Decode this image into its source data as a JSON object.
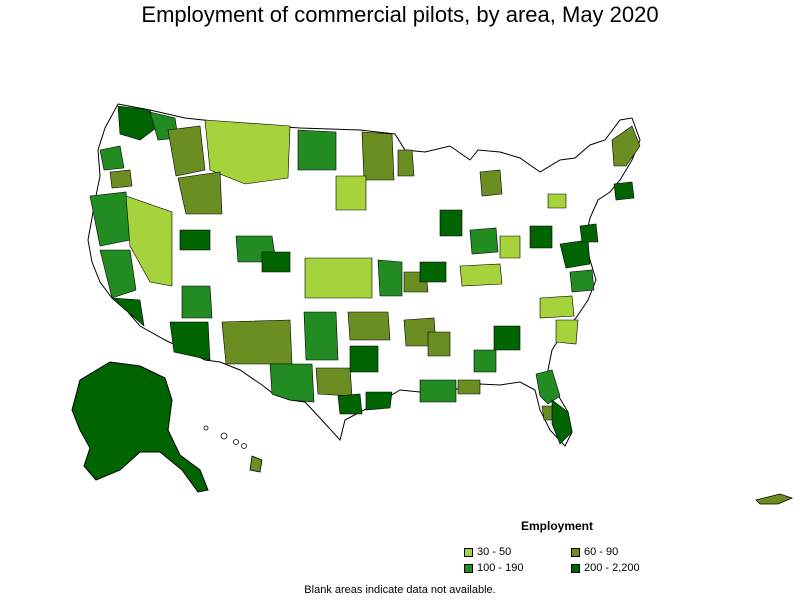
{
  "title": "Employment of commercial pilots, by area, May 2020",
  "legend": {
    "title": "Employment",
    "items": [
      {
        "label": "30 - 50",
        "color": "#a6d23c"
      },
      {
        "label": "60 - 90",
        "color": "#6b8e23"
      },
      {
        "label": "100 - 190",
        "color": "#228b22"
      },
      {
        "label": "200 - 2,200",
        "color": "#006400"
      }
    ]
  },
  "footnote": "Blank areas indicate data not available."
}
